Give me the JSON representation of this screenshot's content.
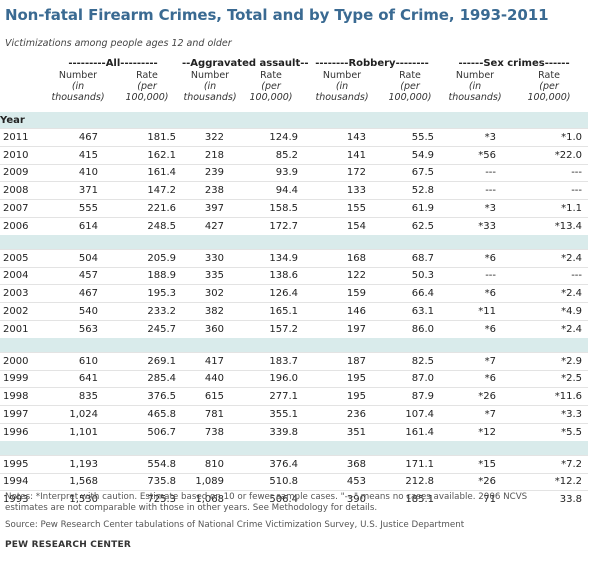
{
  "title": "Non-fatal Firearm Crimes, Total and by Type of Crime, 1993-2011",
  "subtitle": "Victimizations among people ages 12 and older",
  "groups": {
    "all": "---------All---------",
    "assault": "--Aggravated assault--",
    "robbery": "--------Robbery--------",
    "sex": "------Sex crimes------"
  },
  "subheaders": {
    "number_line1": "Number",
    "number_line2": "(in",
    "number_line3": "thousands)",
    "rate_line1": "Rate",
    "rate_line2": "(per",
    "rate_line3": "100,000)"
  },
  "year_label": "Year",
  "rows": [
    [
      "2011",
      "467",
      "181.5",
      "322",
      "124.9",
      "143",
      "55.5",
      "*3",
      "*1.0"
    ],
    [
      "2010",
      "415",
      "162.1",
      "218",
      "85.2",
      "141",
      "54.9",
      "*56",
      "*22.0"
    ],
    [
      "2009",
      "410",
      "161.4",
      "239",
      "93.9",
      "172",
      "67.5",
      "---",
      "---"
    ],
    [
      "2008",
      "371",
      "147.2",
      "238",
      "94.4",
      "133",
      "52.8",
      "---",
      "---"
    ],
    [
      "2007",
      "555",
      "221.6",
      "397",
      "158.5",
      "155",
      "61.9",
      "*3",
      "*1.1"
    ],
    [
      "2006",
      "614",
      "248.5",
      "427",
      "172.7",
      "154",
      "62.5",
      "*33",
      "*13.4"
    ],
    [
      "2005",
      "504",
      "205.9",
      "330",
      "134.9",
      "168",
      "68.7",
      "*6",
      "*2.4"
    ],
    [
      "2004",
      "457",
      "188.9",
      "335",
      "138.6",
      "122",
      "50.3",
      "---",
      "---"
    ],
    [
      "2003",
      "467",
      "195.3",
      "302",
      "126.4",
      "159",
      "66.4",
      "*6",
      "*2.4"
    ],
    [
      "2002",
      "540",
      "233.2",
      "382",
      "165.1",
      "146",
      "63.1",
      "*11",
      "*4.9"
    ],
    [
      "2001",
      "563",
      "245.7",
      "360",
      "157.2",
      "197",
      "86.0",
      "*6",
      "*2.4"
    ],
    [
      "2000",
      "610",
      "269.1",
      "417",
      "183.7",
      "187",
      "82.5",
      "*7",
      "*2.9"
    ],
    [
      "1999",
      "641",
      "285.4",
      "440",
      "196.0",
      "195",
      "87.0",
      "*6",
      "*2.5"
    ],
    [
      "1998",
      "835",
      "376.5",
      "615",
      "277.1",
      "195",
      "87.9",
      "*26",
      "*11.6"
    ],
    [
      "1997",
      "1,024",
      "465.8",
      "781",
      "355.1",
      "236",
      "107.4",
      "*7",
      "*3.3"
    ],
    [
      "1996",
      "1,101",
      "506.7",
      "738",
      "339.8",
      "351",
      "161.4",
      "*12",
      "*5.5"
    ],
    [
      "1995",
      "1,193",
      "554.8",
      "810",
      "376.4",
      "368",
      "171.1",
      "*15",
      "*7.2"
    ],
    [
      "1994",
      "1,568",
      "735.8",
      "1,089",
      "510.8",
      "453",
      "212.8",
      "*26",
      "*12.2"
    ],
    [
      "1993",
      "1,530",
      "725.3",
      "1,068",
      "506.4",
      "390",
      "185.1",
      "71",
      "33.8"
    ]
  ],
  "notes_line1": "Notes: *Interpret with caution. Estimate based on 10 or fewer sample cases. \"---\" means no cases available. 2006 NCVS",
  "notes_line2": "estimates are not comparable with those in other years. See Methodology for details.",
  "source": "Source: Pew Research Center tabulations of National Crime Victimization Survey, U.S. Justice Department",
  "brand": "PEW RESEARCH CENTER"
}
